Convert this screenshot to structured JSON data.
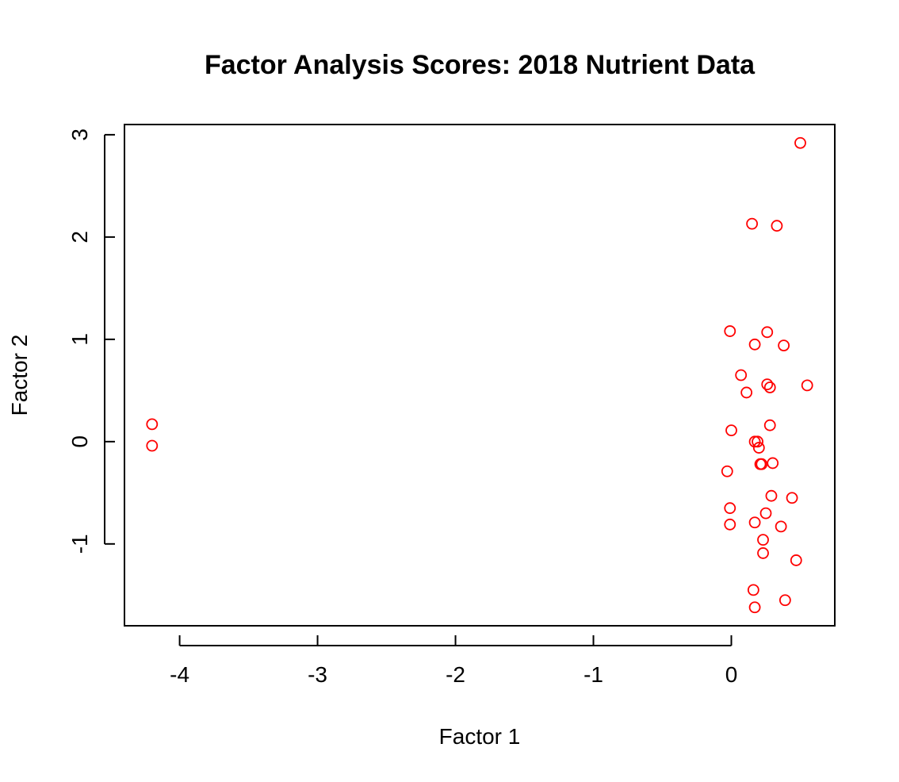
{
  "chart_data": {
    "type": "scatter",
    "title": "Factor Analysis Scores: 2018 Nutrient Data",
    "xlabel": "Factor 1",
    "ylabel": "Factor 2",
    "xlim": [
      -4.4,
      0.75
    ],
    "ylim": [
      -1.8,
      3.1
    ],
    "x_ticks": [
      -4,
      -3,
      -2,
      -1,
      0
    ],
    "y_ticks": [
      -1,
      0,
      1,
      2,
      3
    ],
    "x_tick_labels": [
      "-4",
      "-3",
      "-2",
      "-1",
      "0"
    ],
    "y_tick_labels": [
      "-1",
      "0",
      "1",
      "2",
      "3"
    ],
    "marker": "open-circle",
    "point_color": "#ff0000",
    "grid": false,
    "legend": "none",
    "series": [
      {
        "x": [
          0.5,
          0.15,
          0.33,
          -0.01,
          0.26,
          0.17,
          0.38,
          0.07,
          0.26,
          0.28,
          0.11,
          0.55,
          -4.2,
          0.28,
          0.0,
          0.17,
          0.19,
          0.2,
          0.21,
          0.22,
          0.3,
          -0.03,
          0.29,
          0.44,
          -0.01,
          0.25,
          -0.01,
          0.17,
          0.36,
          0.23,
          0.23,
          0.47,
          0.16,
          0.39,
          0.17,
          -4.2
        ],
        "y": [
          2.92,
          2.13,
          2.11,
          1.08,
          1.07,
          0.95,
          0.94,
          0.65,
          0.56,
          0.53,
          0.48,
          0.55,
          0.17,
          0.16,
          0.11,
          0.0,
          0.0,
          -0.06,
          -0.22,
          -0.22,
          -0.21,
          -0.29,
          -0.53,
          -0.55,
          -0.65,
          -0.7,
          -0.81,
          -0.79,
          -0.83,
          -0.96,
          -1.09,
          -1.16,
          -1.45,
          -1.55,
          -1.62,
          -0.04
        ]
      }
    ]
  }
}
